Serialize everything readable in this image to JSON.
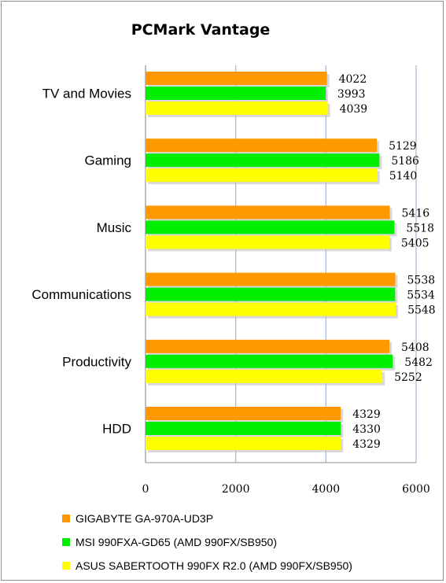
{
  "chart_data": {
    "type": "bar",
    "orientation": "horizontal",
    "title": "PCMark Vantage",
    "categories": [
      "TV and Movies",
      "Gaming",
      "Music",
      "Communications",
      "Productivity",
      "HDD"
    ],
    "series": [
      {
        "name": "GIGABYTE GA-970A-UD3P",
        "color": "#ff9900",
        "values": [
          4022,
          5129,
          5416,
          5538,
          5408,
          4329
        ]
      },
      {
        "name": "MSI 990FXA-GD65 (AMD 990FX/SB950)",
        "color": "#00ee00",
        "values": [
          3993,
          5186,
          5518,
          5534,
          5482,
          4330
        ]
      },
      {
        "name": "ASUS SABERTOOTH 990FX R2.0 (AMD 990FX/SB950)",
        "color": "#ffff00",
        "values": [
          4039,
          5140,
          5405,
          5548,
          5252,
          4329
        ]
      }
    ],
    "xlim": [
      0,
      6000
    ],
    "xticks": [
      0,
      2000,
      4000,
      6000
    ],
    "grid": true,
    "legend_position": "bottom"
  }
}
